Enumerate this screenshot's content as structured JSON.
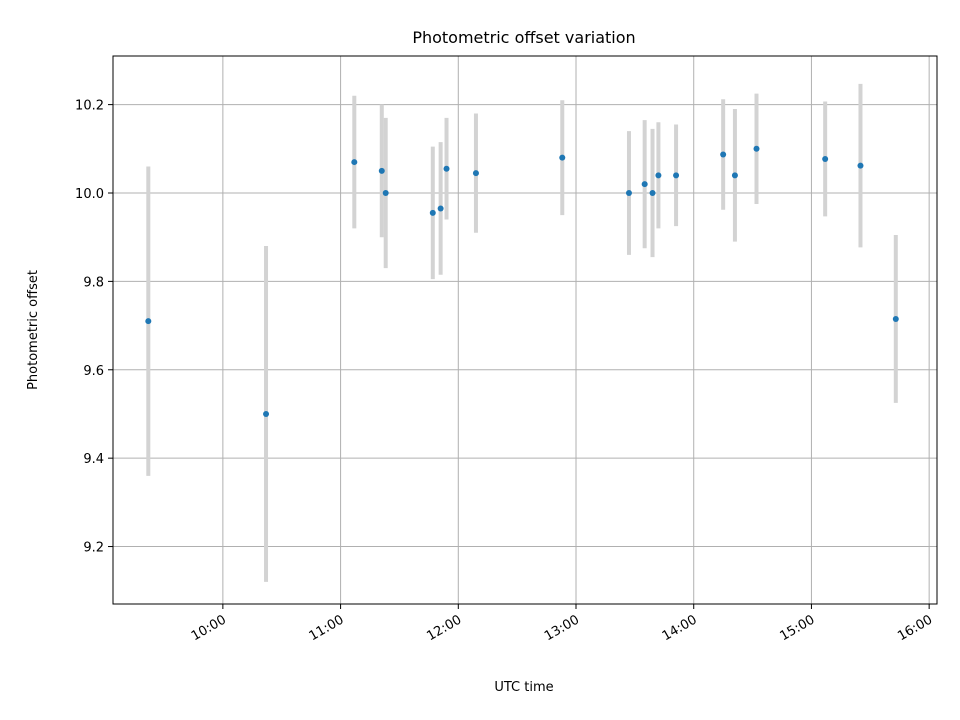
{
  "chart_data": {
    "type": "scatter",
    "title": "Photometric offset variation",
    "xlabel": "UTC time",
    "ylabel": "Photometric offset",
    "xlim": [
      "09:04",
      "16:04"
    ],
    "ylim": [
      9.07,
      10.31
    ],
    "grid": true,
    "xticks": [
      "10:00",
      "11:00",
      "12:00",
      "13:00",
      "14:00",
      "15:00",
      "16:00"
    ],
    "yticks": [
      9.2,
      9.4,
      9.6,
      9.8,
      10.0,
      10.2
    ],
    "ytick_labels": [
      "9.2",
      "9.4",
      "9.6",
      "9.8",
      "10.0",
      "10.2"
    ],
    "marker_color": "#1f77b4",
    "errorbar_color": "#d3d3d3",
    "points": [
      {
        "x": "09:22",
        "y": 9.71,
        "yerr": 0.35
      },
      {
        "x": "10:22",
        "y": 9.5,
        "yerr": 0.38
      },
      {
        "x": "11:07",
        "y": 10.07,
        "yerr": 0.15
      },
      {
        "x": "11:21",
        "y": 10.05,
        "yerr": 0.15
      },
      {
        "x": "11:23",
        "y": 10.0,
        "yerr": 0.17
      },
      {
        "x": "11:47",
        "y": 9.955,
        "yerr": 0.15
      },
      {
        "x": "11:51",
        "y": 9.965,
        "yerr": 0.15
      },
      {
        "x": "11:54",
        "y": 10.055,
        "yerr": 0.115
      },
      {
        "x": "12:09",
        "y": 10.045,
        "yerr": 0.135
      },
      {
        "x": "12:53",
        "y": 10.08,
        "yerr": 0.13
      },
      {
        "x": "13:27",
        "y": 10.0,
        "yerr": 0.14
      },
      {
        "x": "13:35",
        "y": 10.02,
        "yerr": 0.145
      },
      {
        "x": "13:39",
        "y": 10.0,
        "yerr": 0.145
      },
      {
        "x": "13:42",
        "y": 10.04,
        "yerr": 0.12
      },
      {
        "x": "13:51",
        "y": 10.04,
        "yerr": 0.115
      },
      {
        "x": "14:15",
        "y": 10.087,
        "yerr": 0.125
      },
      {
        "x": "14:21",
        "y": 10.04,
        "yerr": 0.15
      },
      {
        "x": "14:32",
        "y": 10.1,
        "yerr": 0.125
      },
      {
        "x": "15:07",
        "y": 10.077,
        "yerr": 0.13
      },
      {
        "x": "15:25",
        "y": 10.062,
        "yerr": 0.185
      },
      {
        "x": "15:43",
        "y": 9.715,
        "yerr": 0.19
      }
    ]
  }
}
